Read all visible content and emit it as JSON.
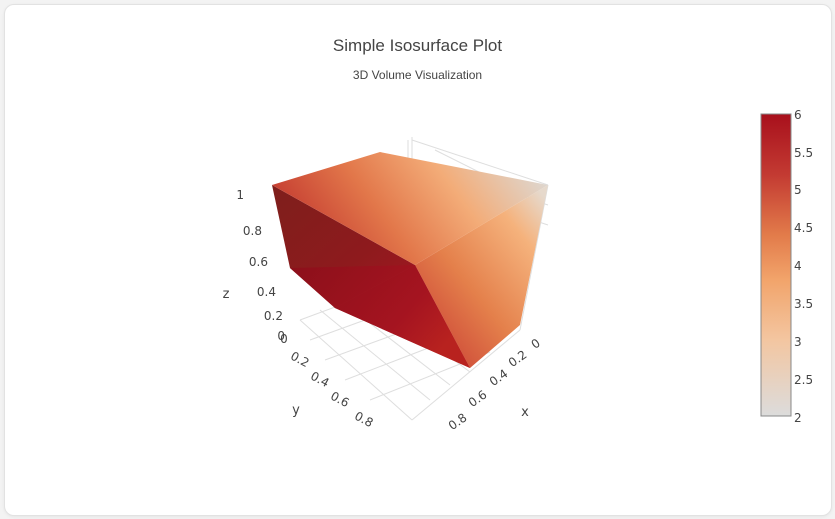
{
  "chart_data": {
    "type": "isosurface",
    "title": "Simple Isosurface Plot",
    "subtitle": "3D Volume Visualization",
    "xlabel": "x",
    "ylabel": "y",
    "zlabel": "z",
    "x_ticks": [
      "0",
      "0.2",
      "0.4",
      "0.6",
      "0.8"
    ],
    "y_ticks": [
      "0",
      "0.2",
      "0.4",
      "0.6",
      "0.8"
    ],
    "z_ticks": [
      "0",
      "0.2",
      "0.4",
      "0.6",
      "0.8",
      "1"
    ],
    "xlim": [
      0,
      1
    ],
    "ylim": [
      0,
      1
    ],
    "zlim": [
      0,
      1
    ],
    "isomin": 2,
    "isomax": 6,
    "colorscale": "RdBu-style (grey to orange to dark red)",
    "colorbar": {
      "min": 2,
      "max": 6,
      "ticks": [
        "2",
        "2.5",
        "3",
        "3.5",
        "4",
        "4.5",
        "5",
        "5.5",
        "6"
      ],
      "colors": {
        "low": "#dcdcdc",
        "mid_low": "#f4b27a",
        "mid": "#e8854f",
        "mid_high": "#c9302c",
        "high": "#a8101c"
      }
    },
    "grid": true
  }
}
